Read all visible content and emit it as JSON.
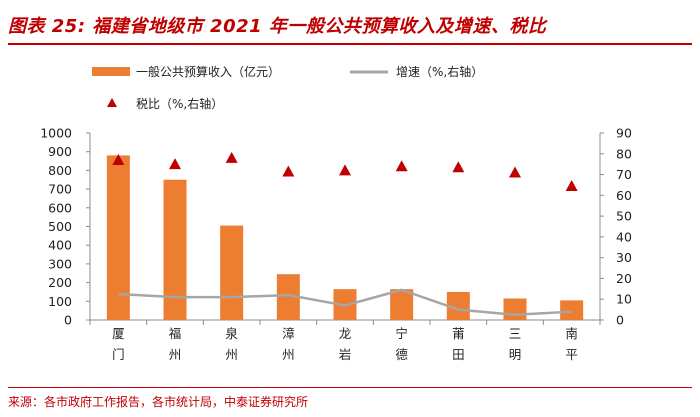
{
  "header": {
    "title": "图表 25: 福建省地级市 2021 年一般公共预算收入及增速、税比"
  },
  "footer": {
    "source": "来源：各市政府工作报告，各市统计局，中泰证券研究所"
  },
  "chart_data": {
    "type": "bar",
    "categories": [
      "厦门",
      "福州",
      "泉州",
      "漳州",
      "龙岩",
      "宁德",
      "莆田",
      "三明",
      "南平"
    ],
    "series": [
      {
        "name": "一般公共预算收入（亿元）",
        "type": "bar",
        "axis": "left",
        "color": "#ed7d31",
        "values": [
          880,
          750,
          505,
          245,
          165,
          165,
          150,
          115,
          105
        ]
      },
      {
        "name": "增速（%,右轴）",
        "type": "line",
        "axis": "right",
        "color": "#a6a6a6",
        "values": [
          12.5,
          11,
          11,
          12,
          7,
          14.5,
          5,
          2.5,
          4
        ]
      },
      {
        "name": "税比（%,右轴）",
        "type": "scatter",
        "marker": "triangle",
        "axis": "right",
        "color": "#c00000",
        "values": [
          77,
          75,
          78,
          71.5,
          72,
          74,
          73.5,
          71,
          64.5
        ]
      }
    ],
    "y_left": {
      "min": 0,
      "max": 1000,
      "step": 100,
      "ticks": [
        "0",
        "100",
        "200",
        "300",
        "400",
        "500",
        "600",
        "700",
        "800",
        "900",
        "1000"
      ]
    },
    "y_right": {
      "min": 0,
      "max": 90,
      "step": 10,
      "ticks": [
        "0",
        "10",
        "20",
        "30",
        "40",
        "50",
        "60",
        "70",
        "80",
        "90"
      ]
    },
    "legend_position": "top-left",
    "grid": false
  }
}
